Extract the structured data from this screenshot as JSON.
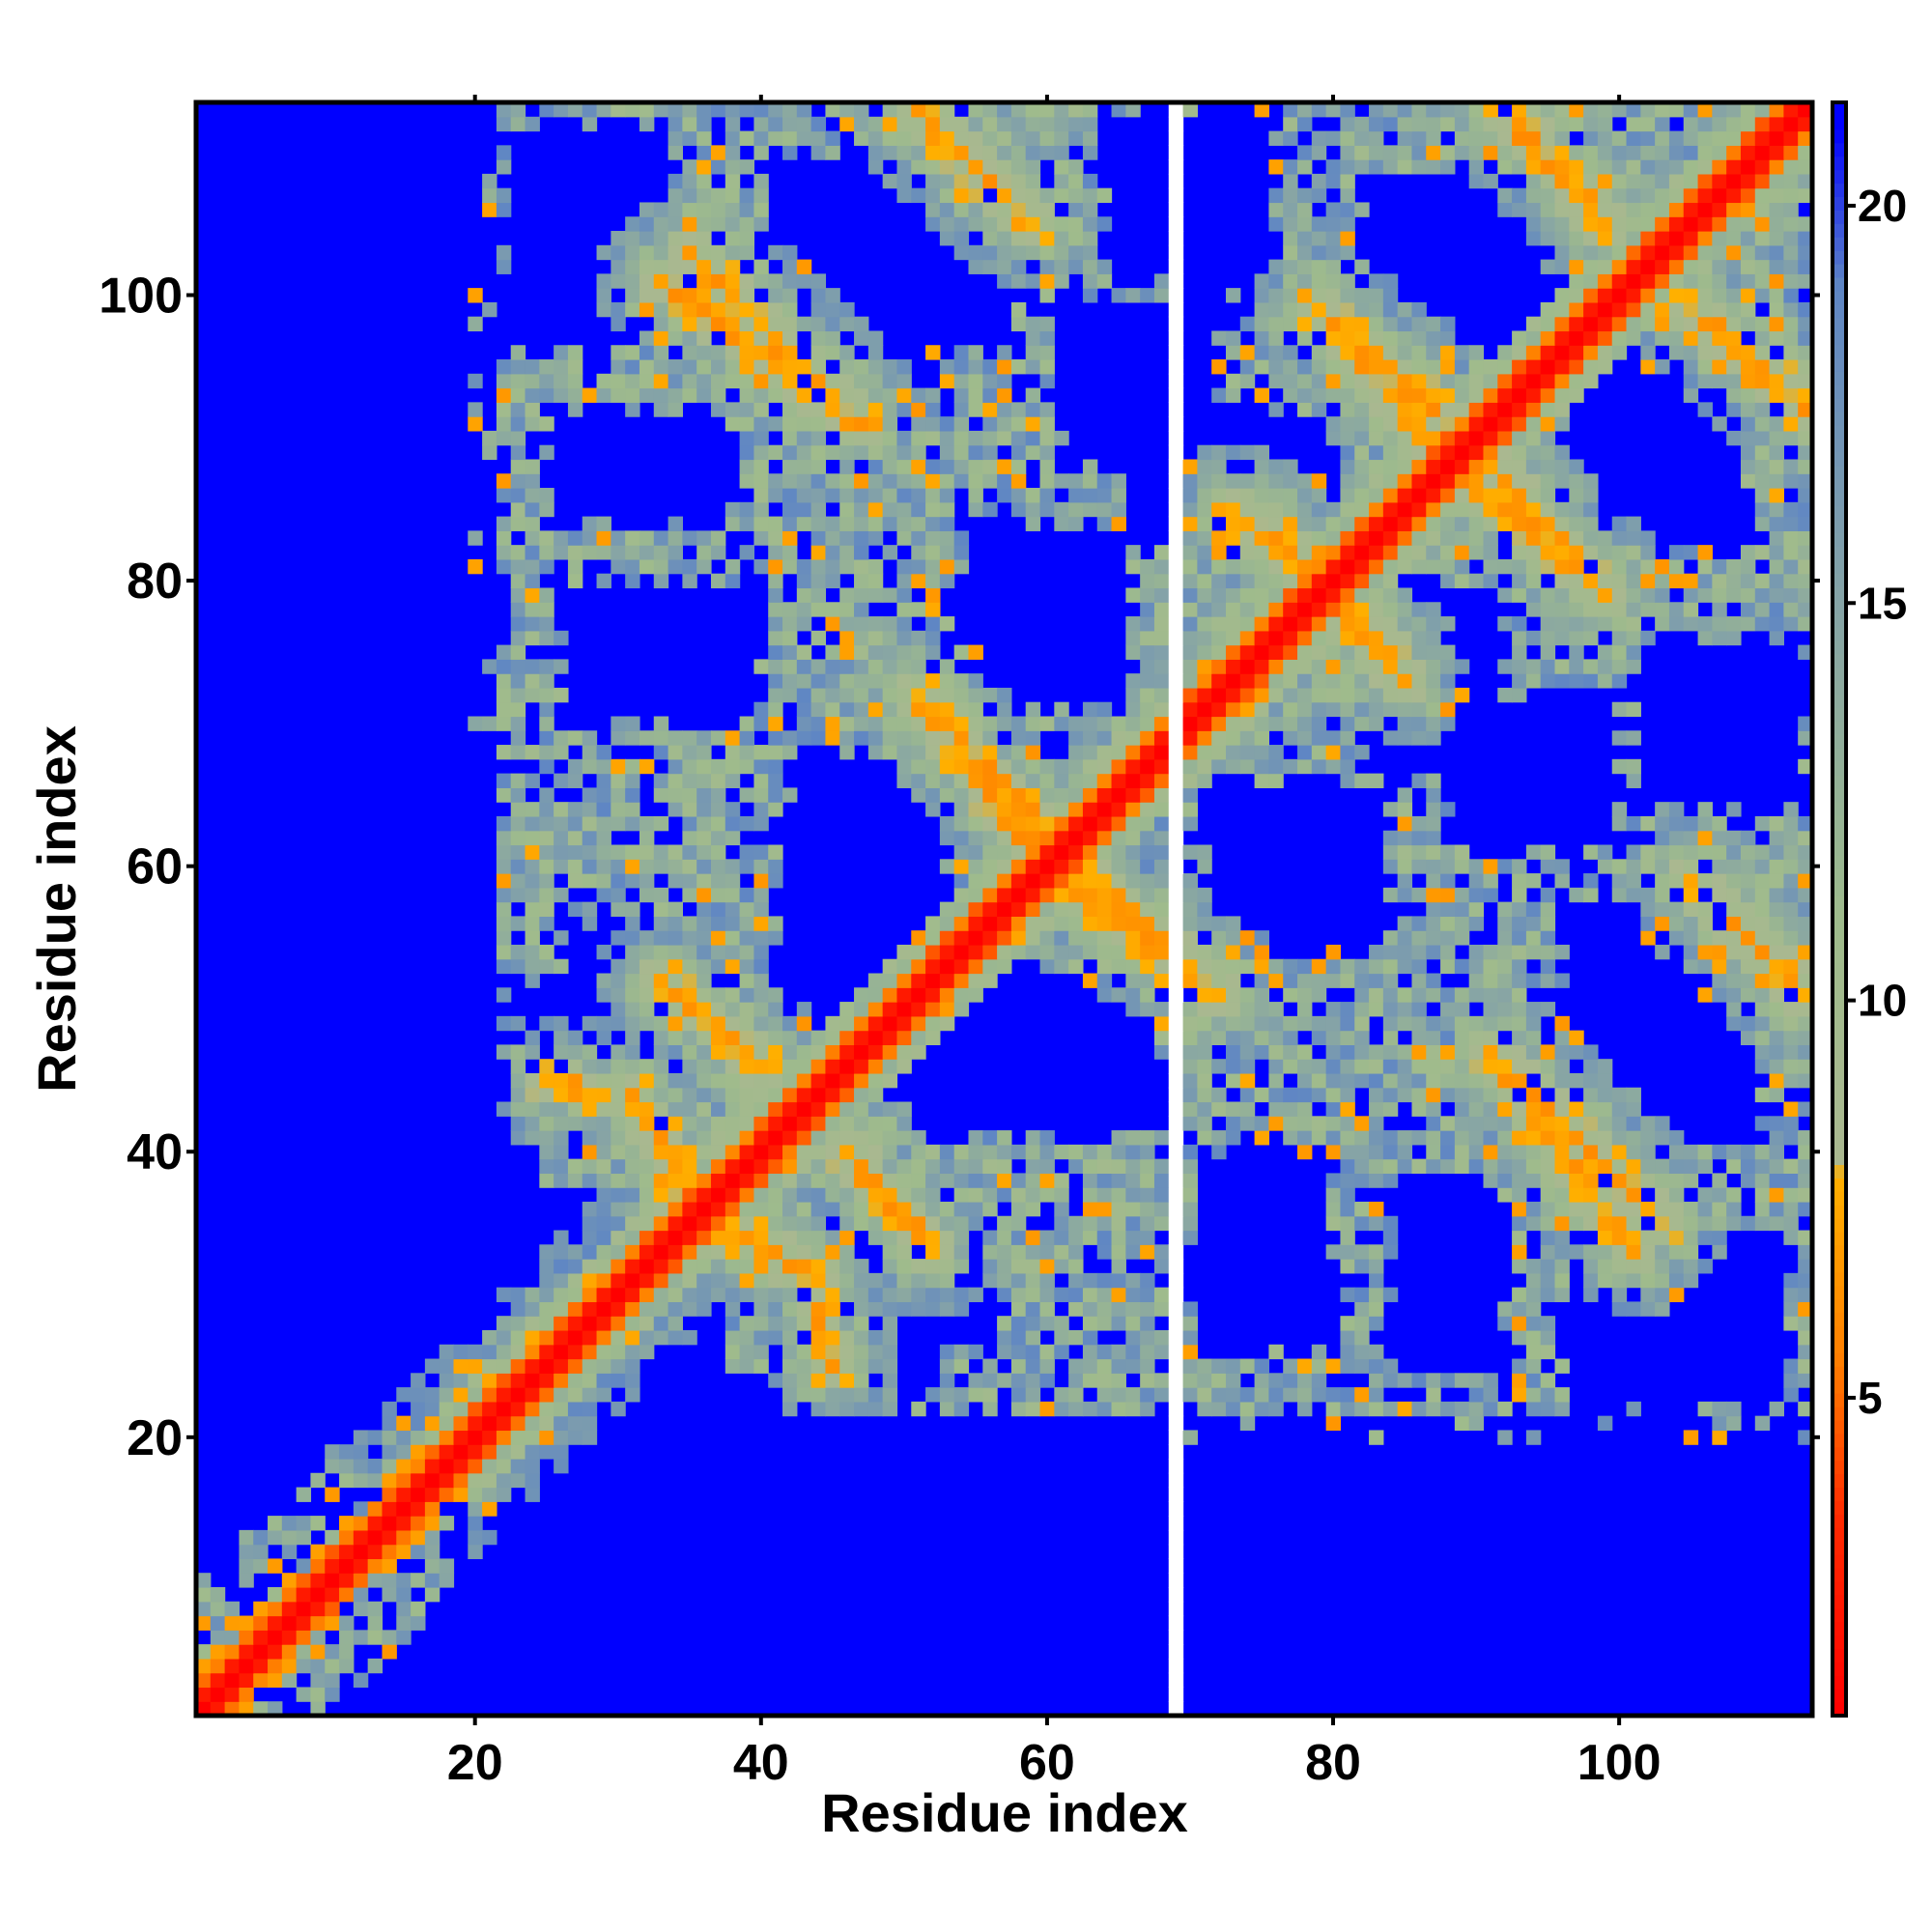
{
  "chart_data": {
    "type": "heatmap",
    "title": "",
    "xlabel": "Residue index",
    "ylabel": "Residue index",
    "xlim": [
      0.5,
      113.5
    ],
    "ylim": [
      0.5,
      113.5
    ],
    "n_residues": 113,
    "x_ticks": [
      20,
      40,
      60,
      80,
      100
    ],
    "y_ticks": [
      20,
      40,
      60,
      80,
      100
    ],
    "colorbar": {
      "range": [
        1,
        21.3
      ],
      "ticks": [
        5,
        10,
        15,
        20
      ],
      "colors": [
        {
          "value": 1.0,
          "color": "#ff0000"
        },
        {
          "value": 3.5,
          "color": "#ff2a00"
        },
        {
          "value": 5.5,
          "color": "#ff7f00"
        },
        {
          "value": 7.8,
          "color": "#ffb000"
        },
        {
          "value": 8.0,
          "color": "#aab890"
        },
        {
          "value": 11.0,
          "color": "#9fbb8c"
        },
        {
          "value": 15.0,
          "color": "#86a4a6"
        },
        {
          "value": 19.0,
          "color": "#5f86c4"
        },
        {
          "value": 21.0,
          "color": "#0000ff"
        }
      ]
    },
    "cutoff": 21,
    "missing_residue": 69,
    "grid": false,
    "matrix_description_note": "",
    "contact_bands": [
      {
        "i0": 31,
        "j0": 44,
        "i1": 37,
        "j1": 34
      },
      {
        "i0": 46,
        "j0": 40,
        "i1": 52,
        "j1": 33
      },
      {
        "i0": 51,
        "j0": 72,
        "i1": 60,
        "j1": 60
      },
      {
        "i0": 60,
        "j0": 62,
        "i1": 72,
        "j1": 51
      },
      {
        "i0": 75,
        "j0": 84,
        "i1": 85,
        "j1": 73
      },
      {
        "i0": 79,
        "j0": 99,
        "i1": 88,
        "j1": 91
      },
      {
        "i0": 88,
        "j0": 88,
        "i1": 98,
        "j1": 80
      },
      {
        "i0": 91,
        "j0": 47,
        "i1": 103,
        "j1": 35
      },
      {
        "i0": 51,
        "j0": 113,
        "i1": 58,
        "j1": 106
      },
      {
        "i0": 33,
        "j0": 101,
        "i1": 47,
        "j1": 91
      },
      {
        "i0": 105,
        "j0": 59,
        "i1": 113,
        "j1": 51
      },
      {
        "i0": 92,
        "j0": 113,
        "i1": 99,
        "j1": 105
      },
      {
        "i0": 25,
        "j0": 45,
        "i1": 29,
        "j1": 44
      }
    ],
    "halo_blocks": [
      {
        "i": [
          20,
          58
        ],
        "j": [
          88,
          113
        ]
      },
      {
        "i": [
          38,
          75
        ],
        "j": [
          75,
          113
        ]
      },
      {
        "i": [
          60,
          113
        ],
        "j": [
          86,
          113
        ]
      },
      {
        "i": [
          22,
          45
        ],
        "j": [
          47,
          72
        ]
      },
      {
        "i": [
          38,
          72
        ],
        "j": [
          25,
          45
        ]
      },
      {
        "i": [
          70,
          113
        ],
        "j": [
          20,
          48
        ]
      },
      {
        "i": [
          70,
          113
        ],
        "j": [
          48,
          72
        ]
      },
      {
        "i": [
          70,
          113
        ],
        "j": [
          70,
          86
        ]
      },
      {
        "i": [
          60,
          88
        ],
        "j": [
          44,
          60
        ]
      },
      {
        "i": [
          88,
          113
        ],
        "j": [
          50,
          72
        ]
      }
    ],
    "void_blocks": [
      {
        "i": [
          40,
          52
        ],
        "j": [
          94,
          110
        ]
      },
      {
        "i": [
          61,
          72
        ],
        "j": [
          88,
          100
        ]
      },
      {
        "i": [
          82,
          94
        ],
        "j": [
          98,
          109
        ]
      },
      {
        "i": [
          96,
          106
        ],
        "j": [
          88,
          98
        ]
      },
      {
        "i": [
          41,
          52
        ],
        "j": [
          49,
          64
        ]
      },
      {
        "i": [
          56,
          68
        ],
        "j": [
          42,
          53
        ]
      },
      {
        "i": [
          71,
          84
        ],
        "j": [
          54,
          66
        ]
      },
      {
        "i": [
          96,
          109
        ],
        "j": [
          44,
          58
        ]
      },
      {
        "i": [
          40,
          52
        ],
        "j": [
          22,
          36
        ]
      },
      {
        "i": [
          70,
          80
        ],
        "j": [
          26,
          40
        ]
      },
      {
        "i": [
          84,
          92
        ],
        "j": [
          25,
          38
        ]
      },
      {
        "i": [
          96,
          112
        ],
        "j": [
          22,
          34
        ]
      },
      {
        "i": [
          101,
          113
        ],
        "j": [
          64,
          76
        ]
      },
      {
        "i": [
          82,
          92
        ],
        "j": [
          66,
          80
        ]
      },
      {
        "i": [
          26,
          36
        ],
        "j": [
          49,
          56
        ]
      }
    ]
  }
}
